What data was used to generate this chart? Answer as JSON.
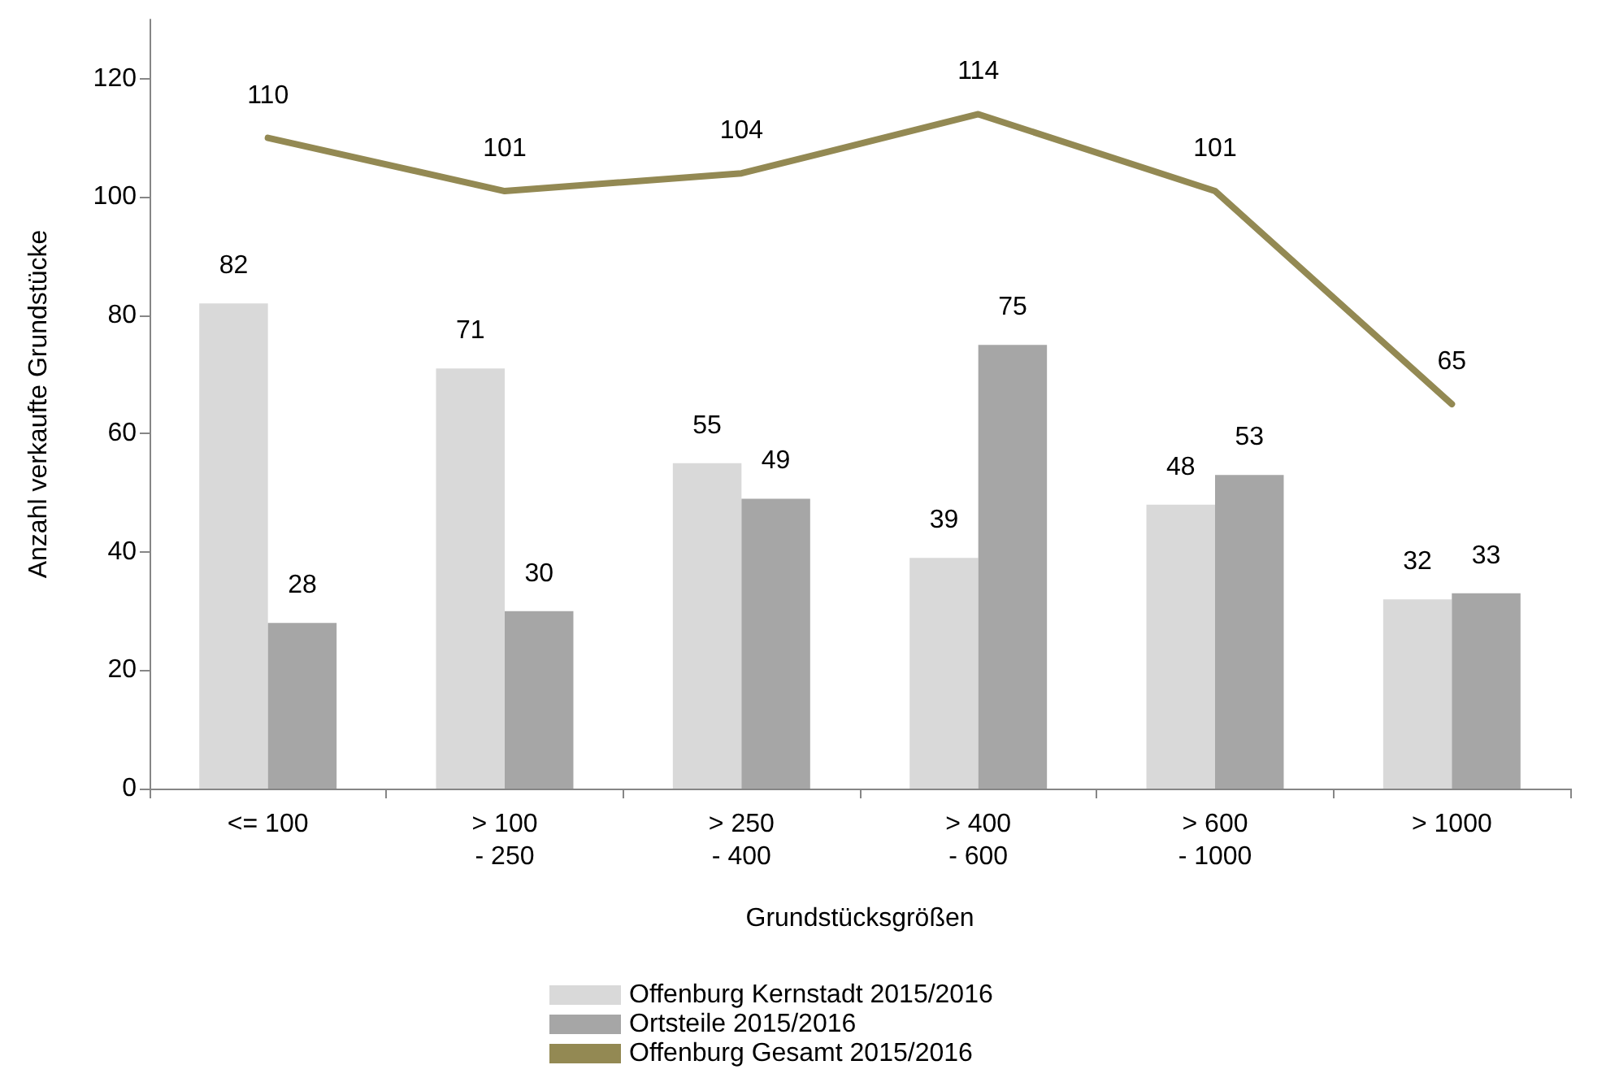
{
  "chart_data": {
    "type": "bar",
    "xlabel": "Grundstücksgrößen",
    "ylabel": "Anzahl verkaufte Grundstücke",
    "categories": [
      "<= 100",
      "> 100\n- 250",
      "> 250\n- 400",
      "> 400\n- 600",
      "> 600\n- 1000",
      "> 1000"
    ],
    "series": [
      {
        "name": "Offenburg Kernstadt 2015/2016",
        "color": "#d9d9d9",
        "values": [
          82,
          71,
          55,
          39,
          48,
          32
        ]
      },
      {
        "name": "Ortsteile 2015/2016",
        "color": "#a6a6a6",
        "values": [
          28,
          30,
          49,
          75,
          53,
          33
        ]
      },
      {
        "name": "Offenburg Gesamt 2015/2016",
        "type": "line",
        "color": "#938953",
        "values": [
          110,
          101,
          104,
          114,
          101,
          65
        ]
      }
    ],
    "ylim": [
      0,
      130
    ],
    "yticks": [
      0,
      20,
      40,
      60,
      80,
      100,
      120
    ],
    "data_labels": true,
    "grid": false,
    "legend": "bottom",
    "marker": "none"
  }
}
